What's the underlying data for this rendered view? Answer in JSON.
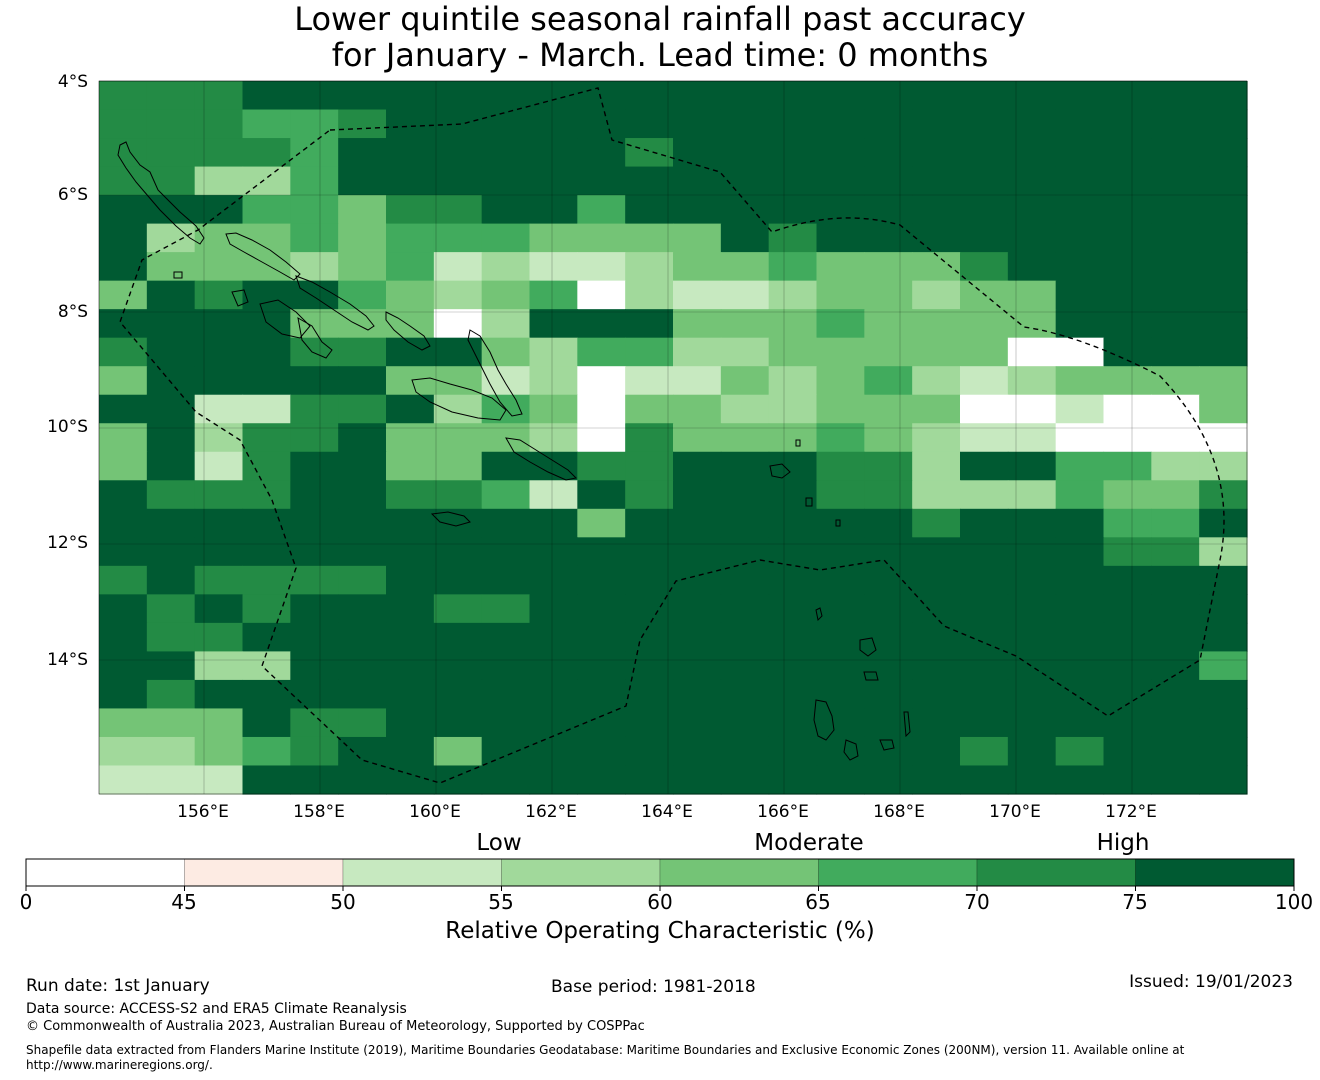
{
  "title": {
    "line1": "Lower quintile seasonal rainfall past accuracy",
    "line2": "for January - March. Lead time: 0 months"
  },
  "map": {
    "lat_labels": [
      "4°S",
      "6°S",
      "8°S",
      "10°S",
      "12°S",
      "14°S"
    ],
    "lon_labels": [
      "156°E",
      "158°E",
      "160°E",
      "162°E",
      "164°E",
      "166°E",
      "168°E",
      "170°E",
      "172°E"
    ],
    "grid_value_legend": "0:<45, 1:45-50, 2:50-55, 3:55-60, 4:60-65, 5:65-70, 6:70-75, 7:75-100",
    "grid": [
      "666777777777777777777777",
      "666556777777777777777777",
      "666657777776777777777777",
      "663357777777777777777777",
      "777554667757777777777777",
      "734454555444476777777777",
      "744434523223445444677777",
      "476775434503223443447777",
      "777744403777444544447777",
      "677766774355334444400777",
      "477777442302243453234444",
      "772266735404433444002004",
      "473667444306444543220000",
      "472677447766777663775533",
      "766677665276777663335446",
      "777777777747777776777557",
      "777777777777777777777663",
      "676666777777777777777777",
      "767677766777777777777777",
      "766777777777777777777777",
      "773377777777777777777775",
      "767777777777777777777777",
      "444766777777777777777777",
      "334567747777777777676777",
      "222777777777777777777777"
    ]
  },
  "colorbar": {
    "colors": [
      "#ffffff",
      "#fdebe3",
      "#c7e9c0",
      "#a1d99b",
      "#74c476",
      "#41ab5d",
      "#238b45",
      "#005a32"
    ],
    "ticks": [
      "0",
      "45",
      "50",
      "55",
      "60",
      "65",
      "70",
      "75",
      "100"
    ],
    "tick_values": [
      0,
      45,
      50,
      55,
      60,
      65,
      70,
      75,
      100
    ],
    "categories": [
      "Low",
      "Moderate",
      "High"
    ],
    "title": "Relative Operating Characteristic (%)"
  },
  "footer": {
    "run_date": "Run date: 1st January",
    "base_period": "Base period: 1981-2018",
    "issued": "Issued: 19/01/2023",
    "data_source": "Data source: ACCESS-S2 and ERA5 Climate Reanalysis",
    "copyright": "© Commonwealth of Australia 2023, Australian Bureau of Meteorology, Supported by COSPPac",
    "shapefile_line1": "Shapefile data extracted from Flanders Marine Institute (2019), Maritime Boundaries Geodatabase: Maritime Boundaries and Exclusive Economic Zones (200NM), version 11. Available online at",
    "shapefile_line2": "http://www.marineregions.org/."
  }
}
